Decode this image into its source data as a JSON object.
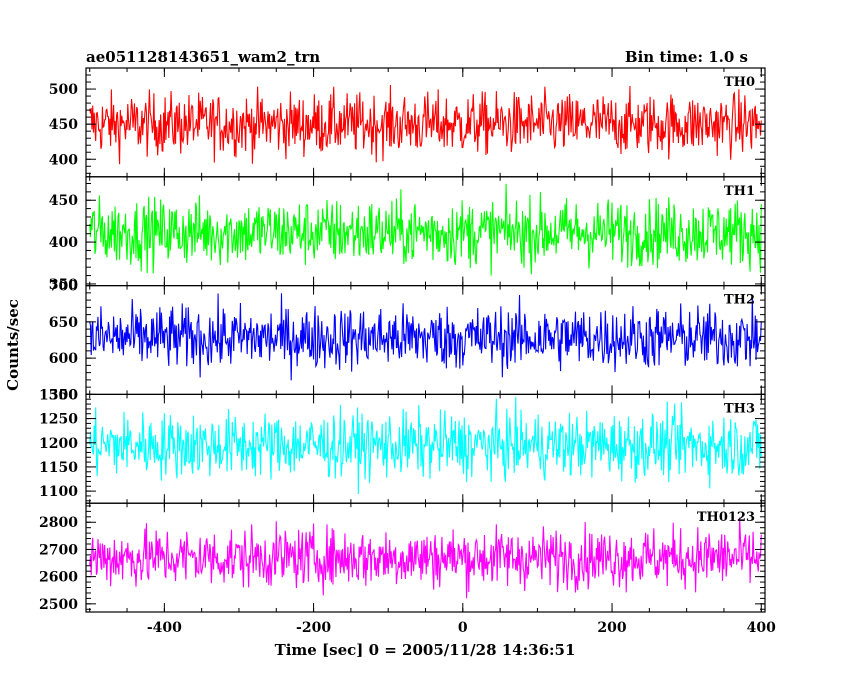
{
  "chart_data": {
    "type": "line",
    "title": "ae051128143651_wam2_trn",
    "subtitle": "Bin time: 1.0 s",
    "xlabel": "Time [sec] 0 = 2005/11/28 14:36:51",
    "ylabel": "Counts/sec",
    "xlim": [
      -505,
      405
    ],
    "xticks": [
      -400,
      -200,
      0,
      200,
      400
    ],
    "grid": false,
    "series": [
      {
        "name": "TH0",
        "color": "#ff0000",
        "ylim": [
          375,
          530
        ],
        "yticks": [
          400,
          450,
          500
        ],
        "mean": 450,
        "amplitude": 22
      },
      {
        "name": "TH1",
        "color": "#00ff00",
        "ylim": [
          348,
          478
        ],
        "yticks": [
          350,
          400,
          450
        ],
        "mean": 412,
        "amplitude": 20
      },
      {
        "name": "TH2",
        "color": "#0000ff",
        "ylim": [
          550,
          700
        ],
        "yticks": [
          550,
          600,
          650,
          700
        ],
        "mean": 628,
        "amplitude": 22
      },
      {
        "name": "TH3",
        "color": "#00ffff",
        "ylim": [
          1075,
          1300
        ],
        "yticks": [
          1100,
          1150,
          1200,
          1250,
          1300
        ],
        "mean": 1195,
        "amplitude": 34
      },
      {
        "name": "TH0123",
        "color": "#ff00ff",
        "ylim": [
          2470,
          2870
        ],
        "yticks": [
          2500,
          2600,
          2700,
          2800
        ],
        "mean": 2670,
        "amplitude": 55
      }
    ]
  }
}
